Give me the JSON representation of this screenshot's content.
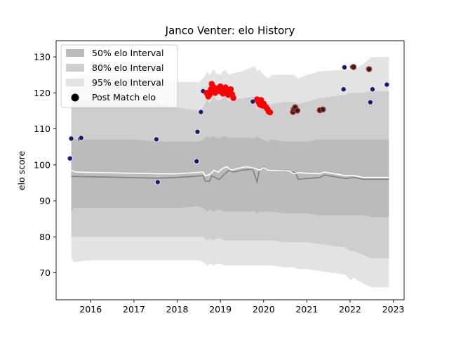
{
  "chart_data": {
    "type": "line",
    "title": "Janco Venter: elo History",
    "xlabel": "",
    "ylabel": "elo score",
    "xlim": [
      2015.2,
      2023.25
    ],
    "ylim": [
      62.5,
      134.5
    ],
    "xticks": [
      2016,
      2017,
      2018,
      2019,
      2020,
      2021,
      2022,
      2023
    ],
    "yticks": [
      70,
      80,
      90,
      100,
      110,
      120,
      130
    ],
    "grid": false,
    "legend_position": "top-left",
    "legend": [
      {
        "label": "50% elo Interval",
        "swatch": "band50"
      },
      {
        "label": "80% elo Interval",
        "swatch": "band80"
      },
      {
        "label": "95% elo Interval",
        "swatch": "band95"
      },
      {
        "label": "Post Match elo",
        "swatch": "dot"
      }
    ],
    "colors": {
      "band95": "#e3e3e3",
      "band80": "#cecece",
      "band50": "#bbbbbb",
      "median_line": "#808080",
      "mean_line": "#ffffff",
      "point_blue": "#1a1a6e",
      "point_red": "#ff0000",
      "point_edge": "#e8e8f0",
      "edge_red": "#b03030"
    },
    "bands": {
      "x": [
        2015.55,
        2015.6,
        2016.0,
        2017.0,
        2017.55,
        2017.6,
        2018.0,
        2018.5,
        2018.6,
        2018.7,
        2018.75,
        2018.85,
        2018.9,
        2019.0,
        2019.1,
        2019.2,
        2019.3,
        2019.5,
        2019.8,
        2019.85,
        2019.9,
        2020.0,
        2020.1,
        2020.2,
        2020.5,
        2020.7,
        2020.8,
        2021.0,
        2021.3,
        2021.9,
        2022.0,
        2022.1,
        2022.3,
        2022.5,
        2022.9
      ],
      "upper95": [
        122.5,
        124.5,
        125,
        125,
        124.5,
        123.5,
        123,
        123,
        124,
        126,
        125,
        126.5,
        125.5,
        125,
        126.5,
        125,
        125.5,
        126,
        127.5,
        126,
        126.5,
        125,
        124,
        125,
        125,
        125,
        124,
        125,
        126,
        126.5,
        126.5,
        126.5,
        128,
        130,
        130
      ],
      "upper80": [
        116,
        118,
        118,
        118,
        117.5,
        117,
        116,
        115,
        116,
        118.5,
        117,
        119,
        118,
        118,
        119,
        117.5,
        118,
        118.5,
        119,
        114.5,
        118.5,
        117,
        116.5,
        117,
        117.5,
        117.5,
        117,
        117.5,
        118.5,
        119.5,
        120,
        120,
        120,
        120.5,
        120.5
      ],
      "upper50": [
        107,
        107,
        107,
        107,
        106.5,
        106.5,
        106.5,
        106.5,
        107,
        108,
        107.5,
        108,
        107.5,
        107.5,
        108,
        107.5,
        107.5,
        107.5,
        107.5,
        108,
        107.5,
        107,
        106.5,
        107,
        106.5,
        106.5,
        106.5,
        106.5,
        107,
        107,
        107,
        107,
        107,
        107,
        107
      ],
      "lower50": [
        87,
        88,
        88,
        88,
        88,
        88,
        88,
        88.5,
        88,
        87,
        87.5,
        87,
        87.5,
        87.5,
        87,
        87,
        87,
        87,
        87,
        86.5,
        87,
        87,
        87,
        87,
        86.5,
        86.5,
        86.5,
        86.5,
        86,
        86,
        86,
        86,
        86,
        85.5,
        85.5
      ],
      "lower80": [
        80,
        80,
        80,
        80,
        80,
        80,
        80,
        80,
        80,
        79,
        79.5,
        79,
        79.5,
        79.5,
        79,
        79,
        79,
        79,
        79,
        79,
        79,
        79,
        79,
        79,
        78.5,
        78.5,
        78.5,
        78.5,
        78,
        77,
        76,
        76,
        75,
        74,
        74
      ],
      "lower95": [
        74.5,
        73,
        73.5,
        73.5,
        73.5,
        73.5,
        73.5,
        73.5,
        73,
        72,
        72.5,
        72,
        72.5,
        72.5,
        72,
        72,
        72,
        72,
        72,
        72,
        72,
        72,
        72,
        72,
        71.5,
        71.5,
        71,
        71,
        70.5,
        69.5,
        68,
        68.5,
        67,
        66,
        66
      ]
    },
    "median_line": {
      "x": [
        2015.55,
        2017.55,
        2018.0,
        2018.6,
        2018.65,
        2018.75,
        2018.8,
        2018.95,
        2019.0,
        2019.1,
        2019.2,
        2019.3,
        2019.5,
        2019.75,
        2019.8,
        2019.85,
        2019.9,
        2020.0,
        2020.1,
        2020.7,
        2020.75,
        2020.8,
        2021.3,
        2021.4,
        2021.9,
        2022.1,
        2022.3,
        2022.5,
        2022.9
      ],
      "y": [
        96.8,
        96.3,
        96.5,
        97.0,
        95.5,
        95.5,
        97.0,
        96.0,
        96.2,
        97.5,
        98.5,
        98.0,
        98.5,
        98.8,
        97.0,
        95.3,
        98.5,
        99.5,
        98.5,
        98.0,
        97.5,
        96.0,
        96.5,
        97.2,
        96.2,
        96.5,
        96.0,
        96.0,
        96.0
      ]
    },
    "mean_line": {
      "x": [
        2015.55,
        2015.65,
        2017.55,
        2018.0,
        2018.6,
        2018.65,
        2018.75,
        2018.85,
        2018.95,
        2019.05,
        2019.15,
        2019.25,
        2019.4,
        2019.6,
        2019.8,
        2019.9,
        2020.0,
        2020.1,
        2020.6,
        2020.7,
        2020.8,
        2021.3,
        2021.4,
        2021.9,
        2022.1,
        2022.3,
        2022.5,
        2022.9
      ],
      "y": [
        98.5,
        98.0,
        97.5,
        97.5,
        98.0,
        97.0,
        97.3,
        98.5,
        98.0,
        99.0,
        99.5,
        98.5,
        99.0,
        99.5,
        99.0,
        98.5,
        99.3,
        98.5,
        98.2,
        97.5,
        97.8,
        97.5,
        98.0,
        97.0,
        97.0,
        96.5,
        96.5,
        96.5
      ]
    },
    "points_blue": {
      "x": [
        2015.52,
        2015.55,
        2015.75,
        2015.78,
        2017.52,
        2017.55,
        2018.45,
        2018.47,
        2018.55,
        2018.6,
        2019.75,
        2021.85,
        2021.87,
        2022.05,
        2022.42,
        2022.47,
        2022.52,
        2022.85
      ],
      "y": [
        101.8,
        107.3,
        107.3,
        107.5,
        107.1,
        95.2,
        101.0,
        109.2,
        114.7,
        120.5,
        117.6,
        121.0,
        127.1,
        127.2,
        126.7,
        117.4,
        121.0,
        122.3
      ]
    },
    "points_red": {
      "x": [
        2018.68,
        2018.72,
        2018.75,
        2018.78,
        2018.8,
        2018.82,
        2018.85,
        2018.88,
        2018.92,
        2018.95,
        2018.98,
        2019.0,
        2019.03,
        2019.06,
        2019.09,
        2019.12,
        2019.15,
        2019.18,
        2019.21,
        2019.24,
        2019.27,
        2019.3,
        2019.85,
        2019.88,
        2019.91,
        2019.94,
        2019.97,
        2020.0,
        2020.03,
        2020.06,
        2020.09,
        2020.12,
        2020.15
      ],
      "y": [
        120.0,
        119.0,
        119.5,
        121.0,
        122.5,
        120.5,
        121.5,
        120.0,
        121.0,
        121.3,
        120.5,
        121.8,
        120.8,
        119.8,
        120.0,
        121.5,
        120.5,
        119.5,
        120.8,
        121.0,
        119.6,
        118.6,
        118.2,
        117.5,
        116.8,
        118.0,
        116.5,
        117.0,
        116.3,
        116.0,
        115.5,
        114.8,
        114.6
      ]
    },
    "points_red_outlined": {
      "x": [
        2020.68,
        2020.7,
        2020.73,
        2020.78,
        2021.3,
        2021.37,
        2022.08,
        2022.44
      ],
      "y": [
        114.7,
        115.5,
        116.0,
        115.1,
        115.2,
        115.4,
        127.2,
        126.6
      ]
    }
  }
}
